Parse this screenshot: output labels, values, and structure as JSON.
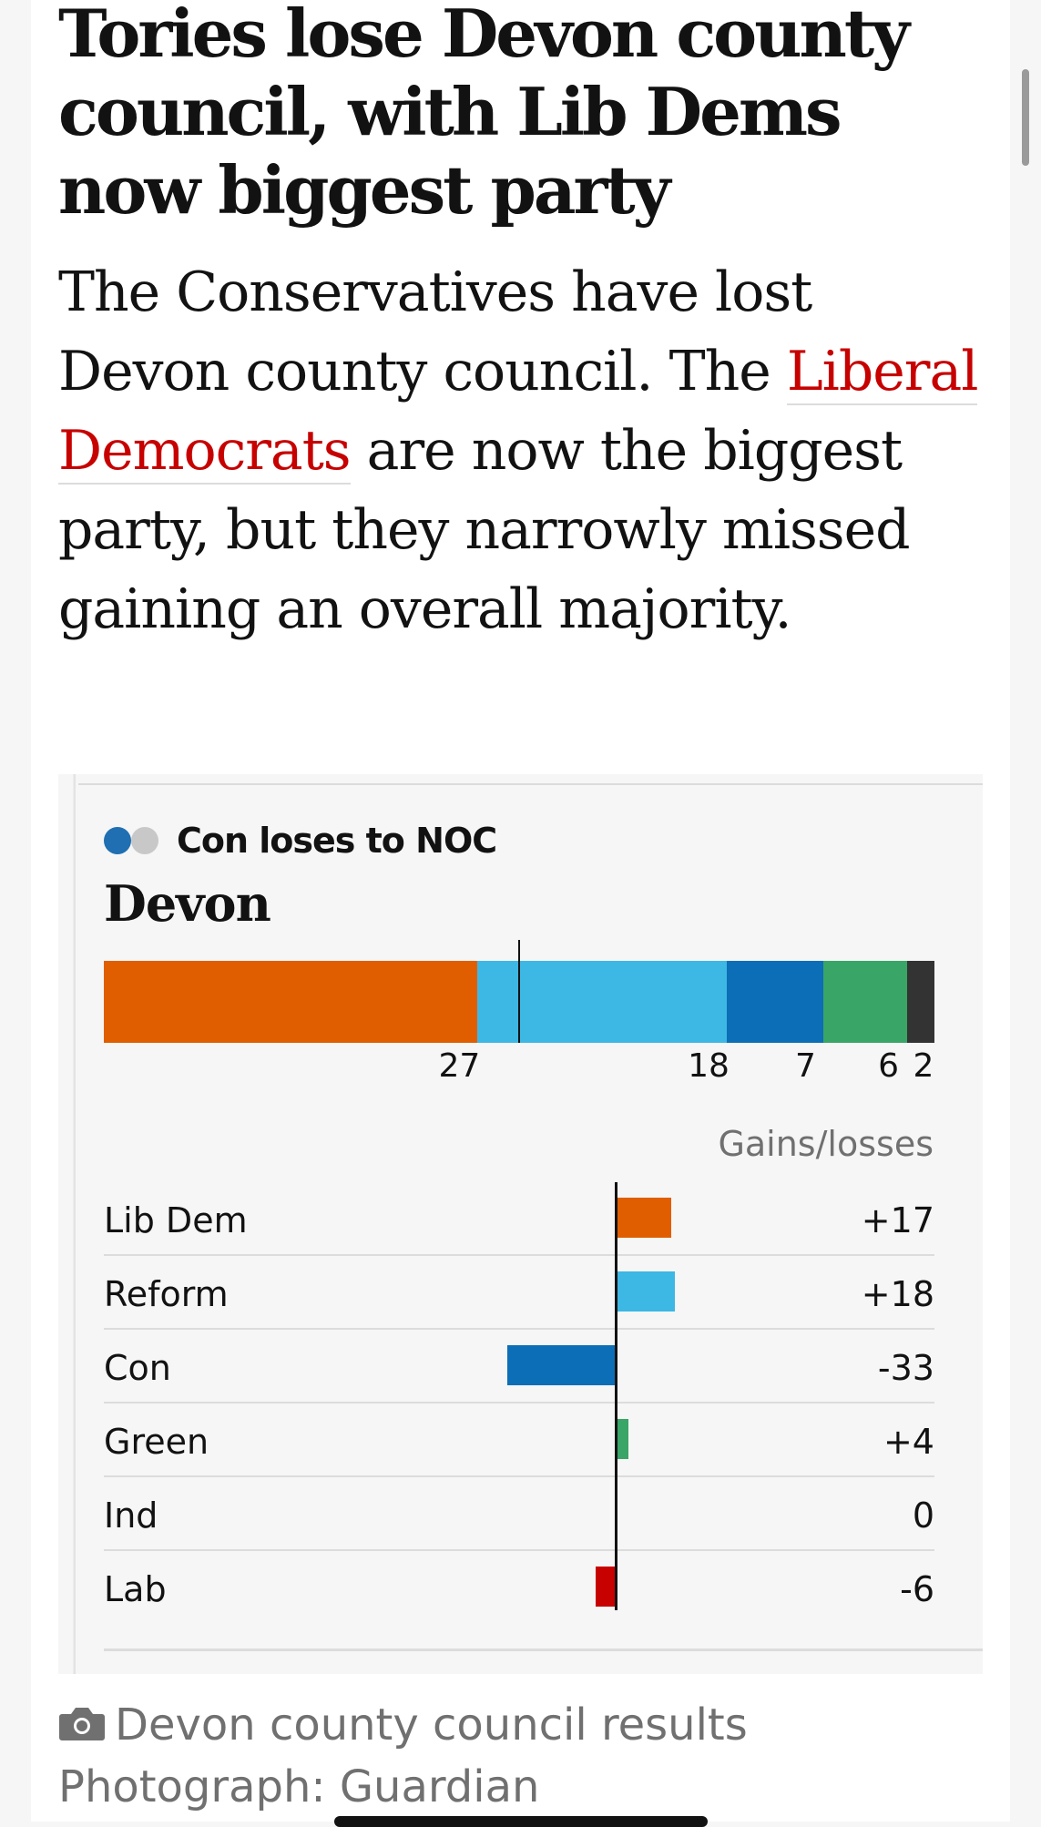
{
  "article": {
    "headline": "Tories lose Devon county council, with Lib Dems now biggest party",
    "standfirst_before": "The Conservatives have lost Devon county council. The ",
    "standfirst_link": "Liberal Democrats",
    "standfirst_after": " are now the biggest party, but they narrowly missed gaining an overall majority."
  },
  "graphic": {
    "status_label": "Con loses to NOC",
    "council_name": "Devon"
  },
  "caption": {
    "line1": "Devon county council results",
    "line2": "Photograph: Guardian",
    "icon": "camera-icon"
  },
  "colors": {
    "lib_dem": "#e05e00",
    "reform": "#3db7e4",
    "con": "#0c6eb6",
    "green": "#39a566",
    "ind": "#333333",
    "lab": "#c70000",
    "link": "#c70000"
  },
  "chart_data": [
    {
      "type": "bar",
      "subtype": "stacked-horizontal",
      "title": "Devon",
      "categories": [
        "Lib Dem",
        "Reform",
        "Con",
        "Green",
        "Ind"
      ],
      "values": [
        27,
        18,
        7,
        6,
        2
      ],
      "value_labels": [
        "27",
        "18",
        "7",
        "6",
        "2"
      ],
      "total_seats": 60,
      "majority_line": 30,
      "colors": [
        "#e05e00",
        "#3db7e4",
        "#0c6eb6",
        "#39a566",
        "#333333"
      ]
    },
    {
      "type": "bar",
      "subtype": "diverging-horizontal",
      "title": "Gains/losses",
      "categories": [
        "Lib Dem",
        "Reform",
        "Con",
        "Green",
        "Ind",
        "Lab"
      ],
      "values": [
        17,
        18,
        -33,
        4,
        0,
        -6
      ],
      "value_labels": [
        "+17",
        "+18",
        "-33",
        "+4",
        "0",
        "-6"
      ],
      "xlim": [
        -60,
        60
      ],
      "colors": [
        "#e05e00",
        "#3db7e4",
        "#0c6eb6",
        "#39a566",
        "#333333",
        "#c70000"
      ]
    }
  ]
}
